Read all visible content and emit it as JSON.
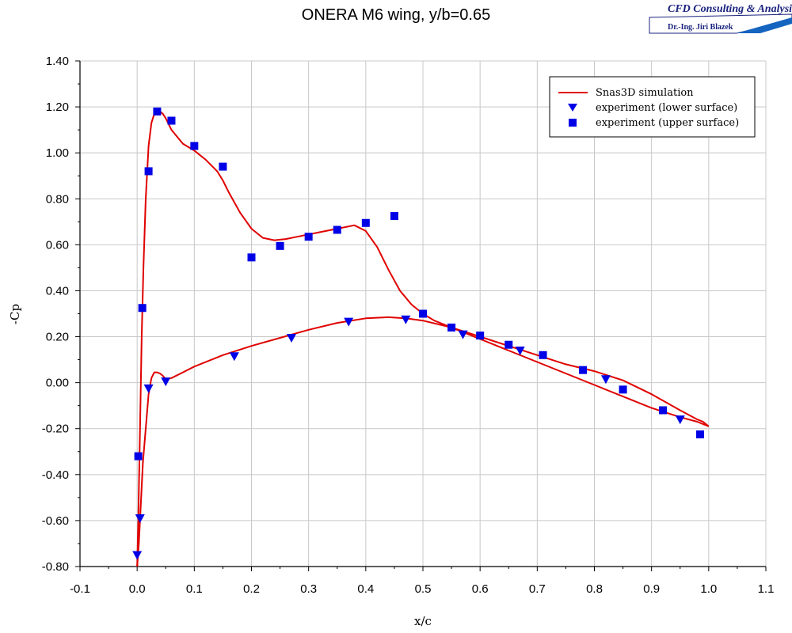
{
  "logo": {
    "company": "CFD Consulting & Analysis",
    "person": "Dr.-Ing. Jiri Blazek"
  },
  "chart_data": {
    "type": "line",
    "title": "ONERA M6 wing, y/b=0.65",
    "xlabel": "x/c",
    "ylabel": "-Cp",
    "xlim": [
      -0.1,
      1.1
    ],
    "ylim": [
      -0.8,
      1.4
    ],
    "x_ticks": [
      "-0.1",
      "0.0",
      "0.1",
      "0.2",
      "0.3",
      "0.4",
      "0.5",
      "0.6",
      "0.7",
      "0.8",
      "0.9",
      "1.0",
      "1.1"
    ],
    "y_ticks": [
      "-0.80",
      "-0.60",
      "-0.40",
      "-0.20",
      "0.00",
      "0.20",
      "0.40",
      "0.60",
      "0.80",
      "1.00",
      "1.20",
      "1.40"
    ],
    "grid": true,
    "legend_position": "top-right",
    "colors": {
      "simulation": "#e00000",
      "experiment": "#0000e6"
    },
    "series": [
      {
        "name": "Snas3D simulation",
        "style": "line",
        "segments": [
          {
            "part": "upper",
            "x": [
              0.0,
              0.002,
              0.005,
              0.008,
              0.011,
              0.015,
              0.02,
              0.025,
              0.03,
              0.035,
              0.04,
              0.045,
              0.05,
              0.06,
              0.07,
              0.08,
              0.1,
              0.12,
              0.14,
              0.15,
              0.16,
              0.18,
              0.2,
              0.22,
              0.24,
              0.26,
              0.28,
              0.3,
              0.32,
              0.34,
              0.36,
              0.38,
              0.4,
              0.42,
              0.44,
              0.46,
              0.48,
              0.5,
              0.52,
              0.55,
              0.6,
              0.65,
              0.7,
              0.75,
              0.8,
              0.85,
              0.9,
              0.95,
              0.98,
              0.99,
              1.0
            ],
            "y": [
              -0.8,
              -0.6,
              -0.2,
              0.2,
              0.5,
              0.8,
              1.03,
              1.13,
              1.17,
              1.18,
              1.18,
              1.17,
              1.15,
              1.1,
              1.07,
              1.04,
              1.01,
              0.97,
              0.92,
              0.88,
              0.83,
              0.74,
              0.67,
              0.63,
              0.62,
              0.625,
              0.635,
              0.645,
              0.655,
              0.665,
              0.675,
              0.685,
              0.66,
              0.59,
              0.49,
              0.4,
              0.34,
              0.3,
              0.27,
              0.24,
              0.19,
              0.14,
              0.09,
              0.04,
              -0.01,
              -0.06,
              -0.11,
              -0.15,
              -0.17,
              -0.18,
              -0.19
            ]
          },
          {
            "part": "lower",
            "x": [
              0.0,
              0.003,
              0.006,
              0.01,
              0.015,
              0.02,
              0.025,
              0.03,
              0.035,
              0.04,
              0.045,
              0.05,
              0.06,
              0.08,
              0.1,
              0.15,
              0.2,
              0.25,
              0.3,
              0.35,
              0.4,
              0.44,
              0.47,
              0.5,
              0.55,
              0.6,
              0.65,
              0.7,
              0.75,
              0.8,
              0.85,
              0.9,
              0.95,
              0.98,
              0.99,
              1.0
            ],
            "y": [
              -0.8,
              -0.7,
              -0.55,
              -0.35,
              -0.2,
              -0.05,
              0.02,
              0.045,
              0.045,
              0.04,
              0.03,
              0.015,
              0.02,
              0.045,
              0.07,
              0.12,
              0.16,
              0.195,
              0.23,
              0.26,
              0.28,
              0.285,
              0.28,
              0.27,
              0.24,
              0.2,
              0.16,
              0.12,
              0.08,
              0.05,
              0.01,
              -0.05,
              -0.12,
              -0.16,
              -0.17,
              -0.19
            ]
          }
        ]
      },
      {
        "name": "experiment (lower surface)",
        "style": "triangle-down",
        "x": [
          0.0,
          0.005,
          0.02,
          0.05,
          0.17,
          0.27,
          0.37,
          0.47,
          0.57,
          0.67,
          0.82,
          0.95
        ],
        "y": [
          -0.75,
          -0.59,
          -0.025,
          0.005,
          0.115,
          0.195,
          0.265,
          0.275,
          0.21,
          0.14,
          0.015,
          -0.16
        ]
      },
      {
        "name": "experiment (upper surface)",
        "style": "square",
        "x": [
          0.002,
          0.009,
          0.02,
          0.035,
          0.06,
          0.1,
          0.15,
          0.2,
          0.25,
          0.3,
          0.35,
          0.4,
          0.45,
          0.5,
          0.55,
          0.6,
          0.65,
          0.71,
          0.78,
          0.85,
          0.92,
          0.985
        ],
        "y": [
          -0.32,
          0.325,
          0.92,
          1.18,
          1.14,
          1.03,
          0.94,
          0.545,
          0.595,
          0.635,
          0.665,
          0.695,
          0.725,
          0.3,
          0.24,
          0.205,
          0.165,
          0.12,
          0.055,
          -0.03,
          -0.12,
          -0.225
        ]
      }
    ]
  }
}
